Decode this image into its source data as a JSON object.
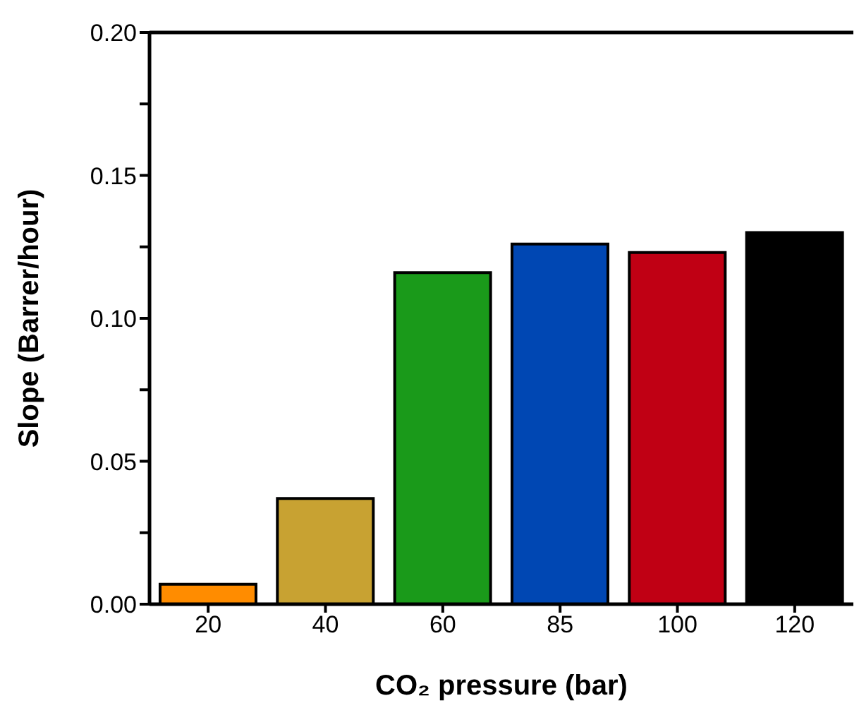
{
  "chart_data": {
    "type": "bar",
    "xlabel": "CO₂ pressure (bar)",
    "ylabel": "Slope (Barrer/hour)",
    "categories": [
      "20",
      "40",
      "60",
      "85",
      "100",
      "120"
    ],
    "values": [
      0.007,
      0.037,
      0.116,
      0.126,
      0.123,
      0.13
    ],
    "colors": [
      "#ff8c00",
      "#c8a232",
      "#1a9a1a",
      "#0047b3",
      "#c00014",
      "#000000"
    ],
    "ylim": [
      0,
      0.2
    ],
    "yticks": [
      {
        "value": 0,
        "label": "0.00"
      },
      {
        "value": 0.025,
        "label": null
      },
      {
        "value": 0.05,
        "label": "0.05"
      },
      {
        "value": 0.075,
        "label": null
      },
      {
        "value": 0.1,
        "label": "0.10"
      },
      {
        "value": 0.125,
        "label": null
      },
      {
        "value": 0.15,
        "label": "0.15"
      },
      {
        "value": 0.175,
        "label": null
      },
      {
        "value": 0.2,
        "label": "0.20"
      }
    ]
  }
}
